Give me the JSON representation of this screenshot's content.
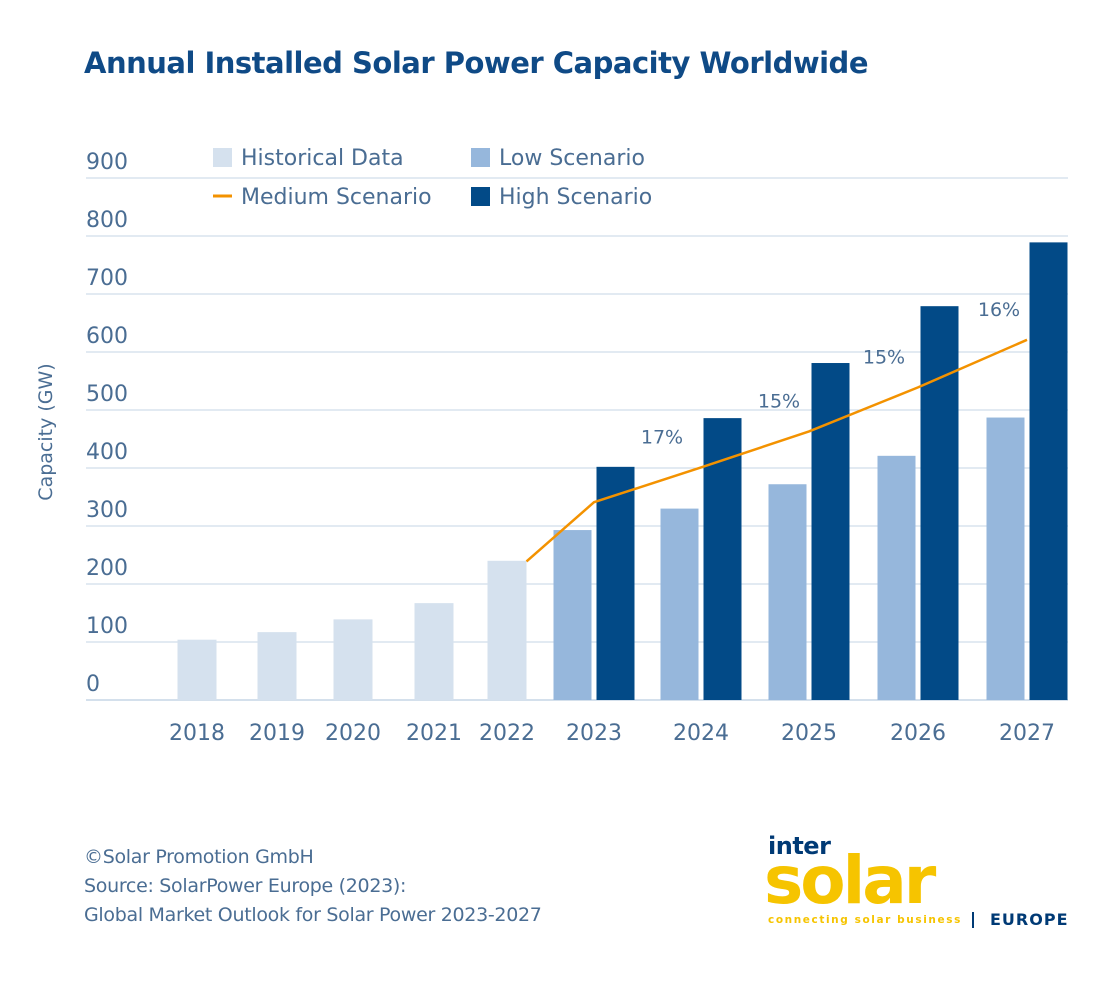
{
  "title": "Annual Installed Solar Power Capacity Worldwide",
  "colors": {
    "historical": "#d5e1ee",
    "low": "#96b7dc",
    "high": "#024a87",
    "medium": "#f39200",
    "axis_text": "#4a6d93",
    "grid": "#c5d5e6",
    "title": "#0f4a86"
  },
  "chart_data": {
    "type": "bar",
    "title": "Annual Installed Solar Power Capacity Worldwide",
    "xlabel": "",
    "ylabel": "Capacity (GW)",
    "ylim": [
      0,
      900
    ],
    "yticks": [
      0,
      100,
      200,
      300,
      400,
      500,
      600,
      700,
      800,
      900
    ],
    "grid": true,
    "legend_position": "top-left",
    "categories": [
      "2018",
      "2019",
      "2020",
      "2021",
      "2022",
      "2023",
      "2024",
      "2025",
      "2026",
      "2027"
    ],
    "series": [
      {
        "name": "Historical Data",
        "type": "bar",
        "color": "#d5e1ee",
        "values": [
          104,
          117,
          139,
          167,
          240,
          null,
          null,
          null,
          null,
          null
        ]
      },
      {
        "name": "Low Scenario",
        "type": "bar",
        "color": "#96b7dc",
        "values": [
          null,
          null,
          null,
          null,
          null,
          293,
          330,
          372,
          421,
          487
        ]
      },
      {
        "name": "Medium Scenario",
        "type": "line",
        "color": "#f39200",
        "values": [
          null,
          null,
          null,
          null,
          239,
          341,
          401,
          463,
          539,
          621
        ]
      },
      {
        "name": "High Scenario",
        "type": "bar",
        "color": "#024a87",
        "values": [
          null,
          null,
          null,
          null,
          null,
          402,
          486,
          581,
          679,
          789
        ]
      }
    ],
    "annotations": [
      {
        "text": "17%",
        "category": "2024"
      },
      {
        "text": "15%",
        "category": "2025"
      },
      {
        "text": "15%",
        "category": "2026"
      },
      {
        "text": "16%",
        "category": "2027"
      }
    ]
  },
  "footer": {
    "copyright": "©Solar Promotion GmbH",
    "source_line1": "Source: SolarPower Europe (2023):",
    "source_line2": "Global Market Outlook for Solar Power 2023-2027"
  },
  "logo": {
    "inter": "inter",
    "solar": "solar",
    "tagline": "connecting solar business",
    "region": "EUROPE"
  }
}
